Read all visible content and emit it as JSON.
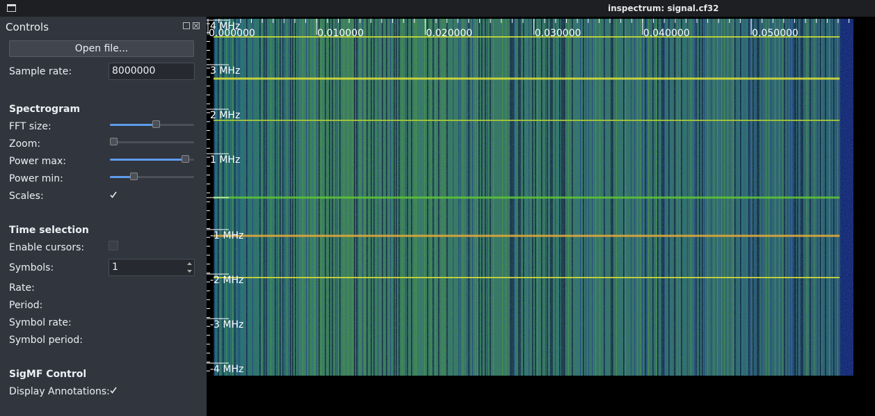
{
  "window": {
    "title": "inspectrum: signal.cf32"
  },
  "controls": {
    "title": "Controls",
    "open_file": "Open file...",
    "sample_rate": {
      "label": "Sample rate:",
      "value": "8000000"
    },
    "spectrogram": {
      "heading": "Spectrogram",
      "fft_size": "FFT size:",
      "zoom": "Zoom:",
      "power_max": "Power max:",
      "power_min": "Power min:",
      "scales": "Scales:",
      "scales_checked": true
    },
    "time_selection": {
      "heading": "Time selection",
      "enable_cursors": "Enable cursors:",
      "enable_cursors_checked": false,
      "symbols": {
        "label": "Symbols:",
        "value": "1"
      },
      "rate": "Rate:",
      "period": "Period:",
      "symbol_rate": "Symbol rate:",
      "symbol_period": "Symbol period:"
    },
    "sigmf": {
      "heading": "SigMF Control",
      "display_annotations": "Display Annotations:",
      "display_annotations_checked": true
    }
  },
  "spectrum": {
    "time_labels": [
      "0.000000",
      "0.010000",
      "0.020000",
      "0.030000",
      "0.040000",
      "0.050000"
    ],
    "freq_labels": [
      "4 MHz",
      "3 MHz",
      "2 MHz",
      "1 MHz",
      "-1 MHz",
      "-2 MHz",
      "-3 MHz",
      "-4 MHz"
    ]
  }
}
